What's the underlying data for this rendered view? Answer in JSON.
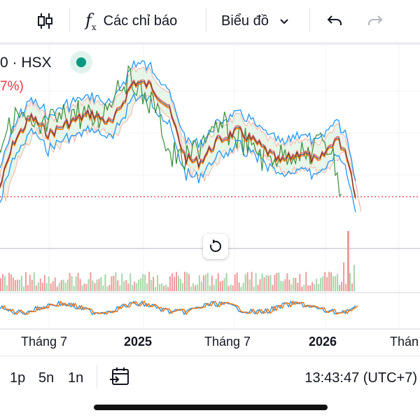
{
  "toolbar": {
    "indicators_label": "Các chỉ báo",
    "chart_label": "Biểu đồ"
  },
  "legend": {
    "symbol": "0 · HSX",
    "change_pct": "7%)",
    "status_color": "#089981"
  },
  "x_axis": {
    "labels": [
      "Tháng 7",
      "2025",
      "Tháng 7",
      "2026",
      "Thán"
    ],
    "bold": [
      false,
      true,
      false,
      true,
      false
    ]
  },
  "bottom": {
    "timeframes": [
      "1p",
      "5n",
      "1n"
    ],
    "clock": "13:43:47 (UTC+7)"
  },
  "colors": {
    "price": "#ef5350",
    "bollinger": "#2196f3",
    "sma": "#ff6d00",
    "oscillator": "#388e3c",
    "volume_up": "#a5d6a7",
    "volume_down": "#ef9a9a",
    "ref_line": "#f23645"
  }
}
